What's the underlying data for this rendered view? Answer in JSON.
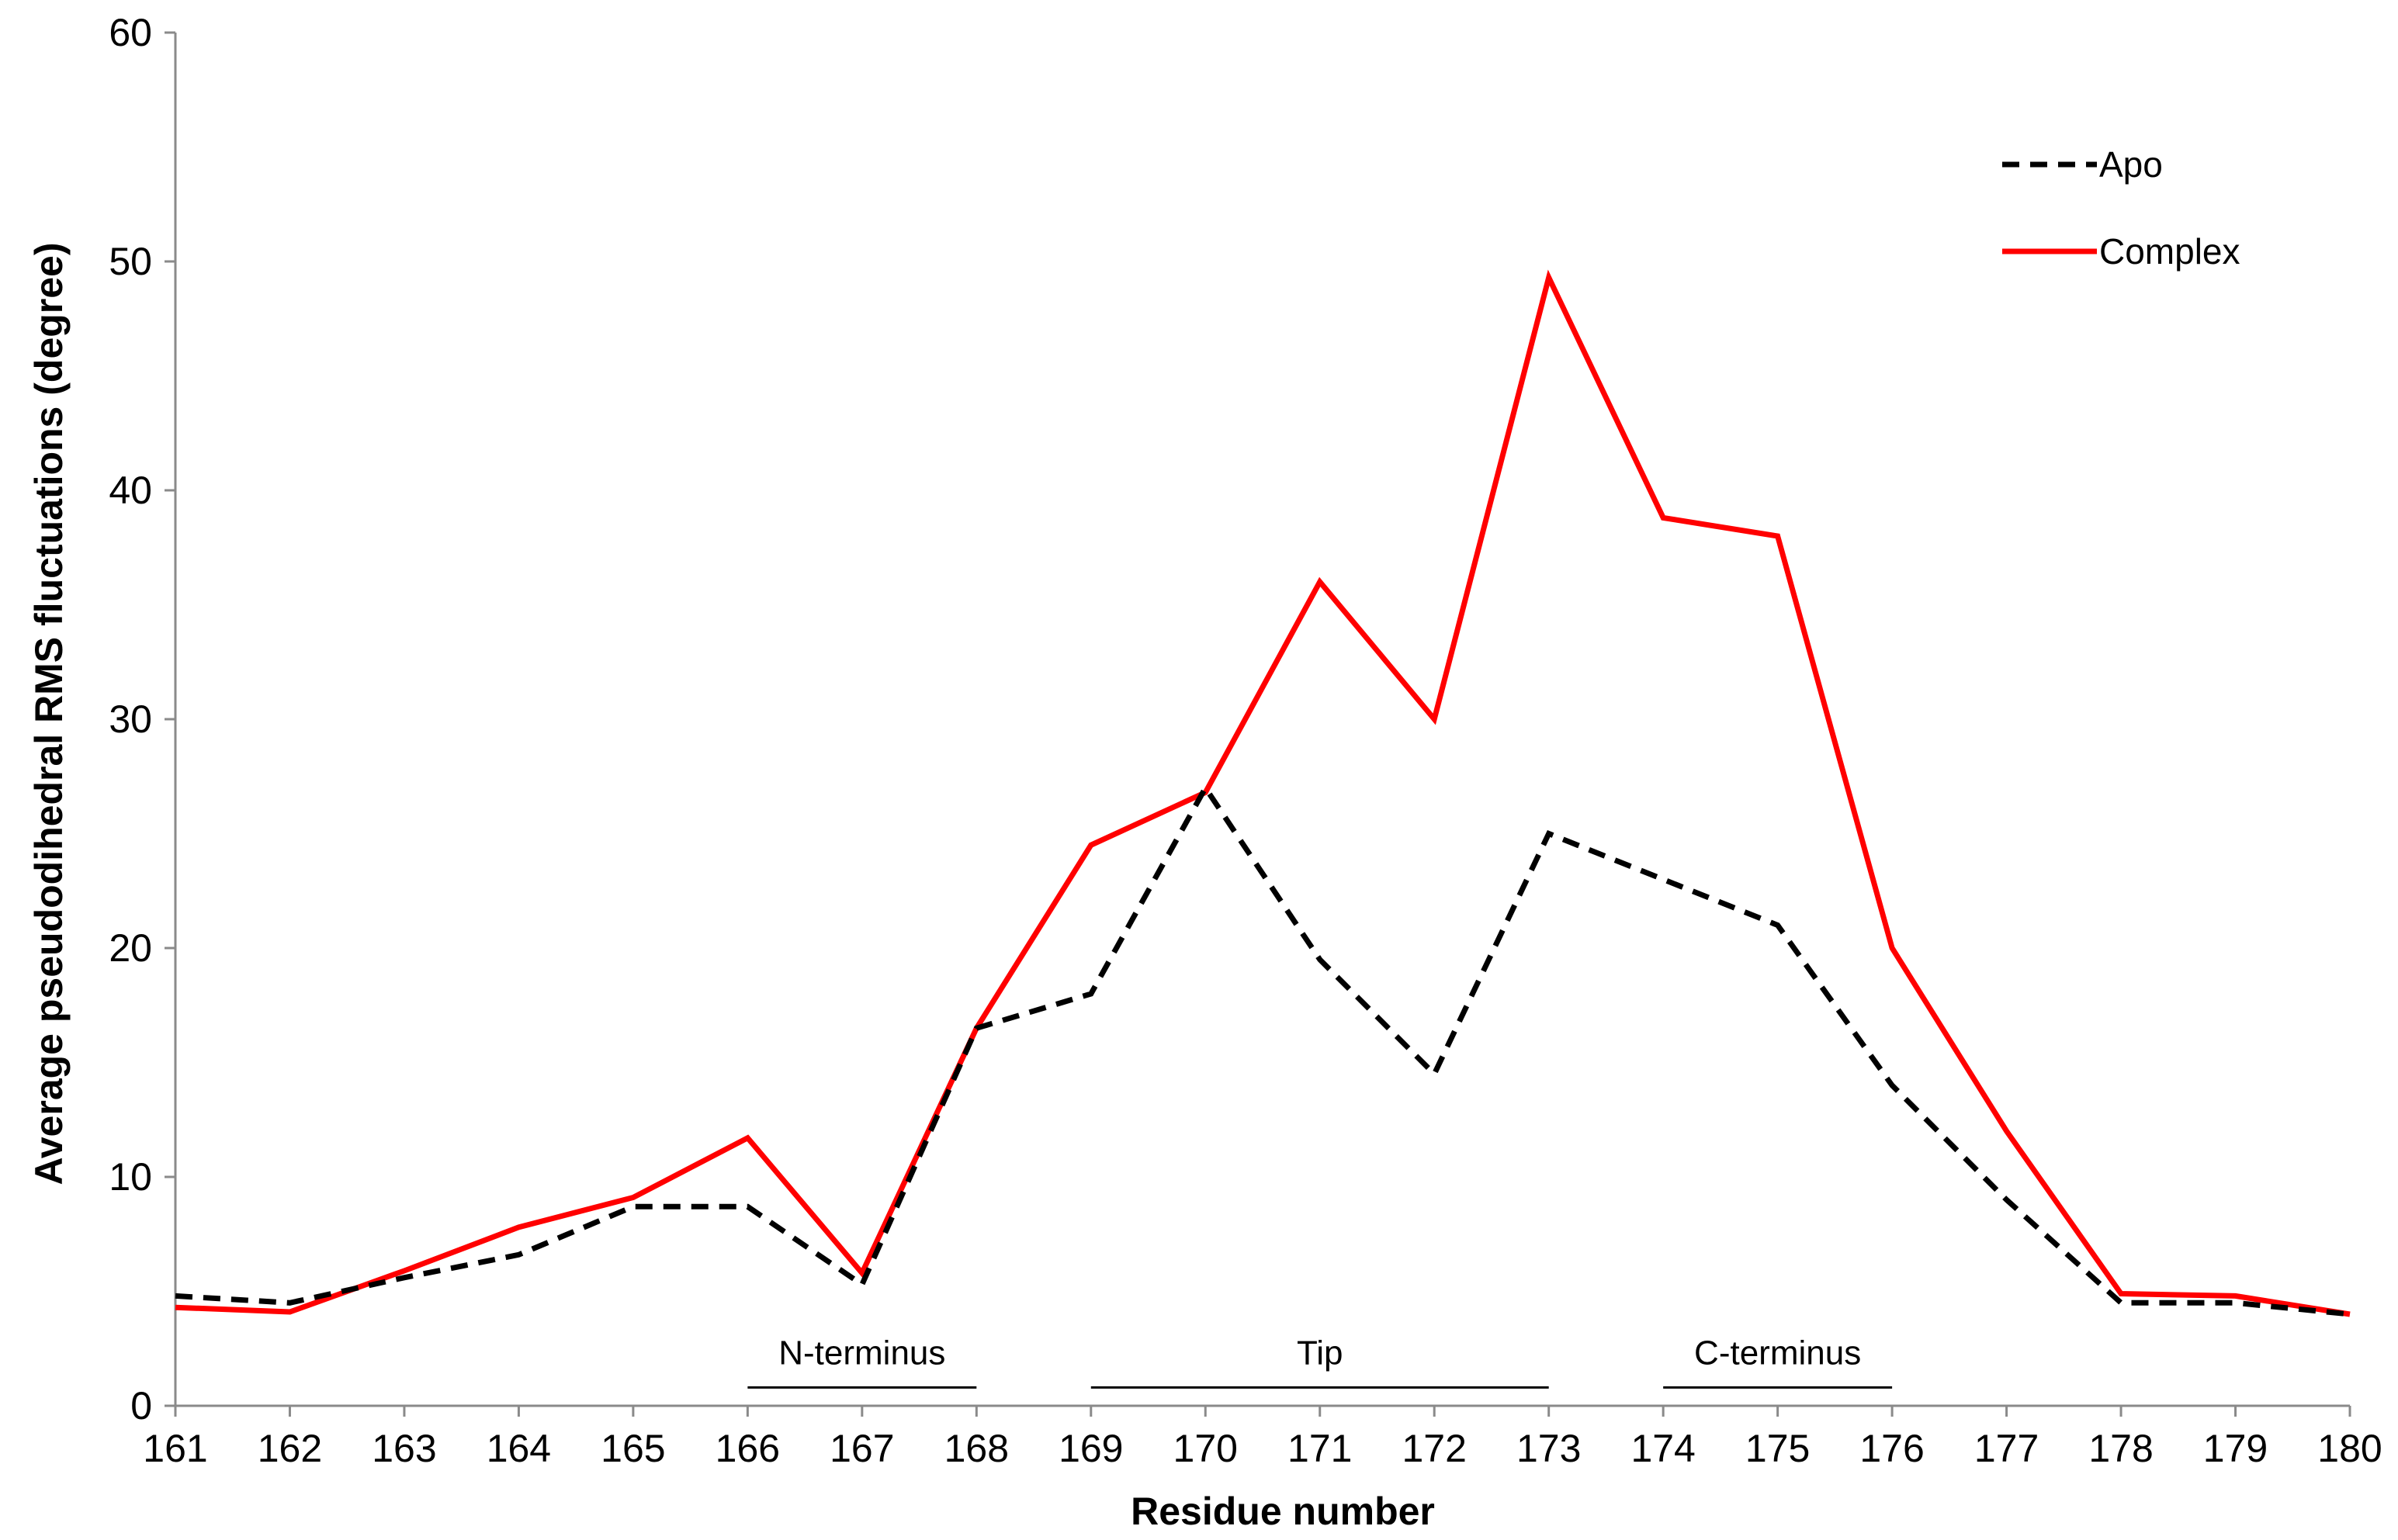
{
  "chart_data": {
    "type": "line",
    "title": "",
    "xlabel": "Residue number",
    "ylabel": "Average pseudodihedral RMS fluctuations (degree)",
    "x": [
      161,
      162,
      163,
      164,
      165,
      166,
      167,
      168,
      169,
      170,
      171,
      172,
      173,
      174,
      175,
      176,
      177,
      178,
      179,
      180
    ],
    "xlim": [
      161,
      180
    ],
    "ylim": [
      0,
      60
    ],
    "yticks": [
      0,
      10,
      20,
      30,
      40,
      50,
      60
    ],
    "grid": false,
    "legend_position": "top-right",
    "series": [
      {
        "name": "Apo",
        "color": "#000000",
        "style": "dashed",
        "values": [
          4.8,
          4.5,
          5.6,
          6.6,
          8.7,
          8.7,
          5.3,
          16.5,
          18.0,
          27.0,
          19.5,
          14.5,
          25.0,
          23.0,
          21.0,
          14.0,
          9.0,
          4.5,
          4.5,
          4.0
        ]
      },
      {
        "name": "Complex",
        "color": "#ff0000",
        "style": "solid",
        "values": [
          4.3,
          4.1,
          5.9,
          7.8,
          9.1,
          11.7,
          5.8,
          16.5,
          24.5,
          26.8,
          36.0,
          30.0,
          49.3,
          38.8,
          38.0,
          20.0,
          12.0,
          4.9,
          4.8,
          4.0
        ]
      }
    ],
    "annotations": [
      {
        "label": "N-terminus",
        "x_start": 166,
        "x_end": 168,
        "y": 0.8
      },
      {
        "label": "Tip",
        "x_start": 169,
        "x_end": 173,
        "y": 0.8
      },
      {
        "label": "C-terminus",
        "x_start": 174,
        "x_end": 176,
        "y": 0.8
      }
    ]
  }
}
